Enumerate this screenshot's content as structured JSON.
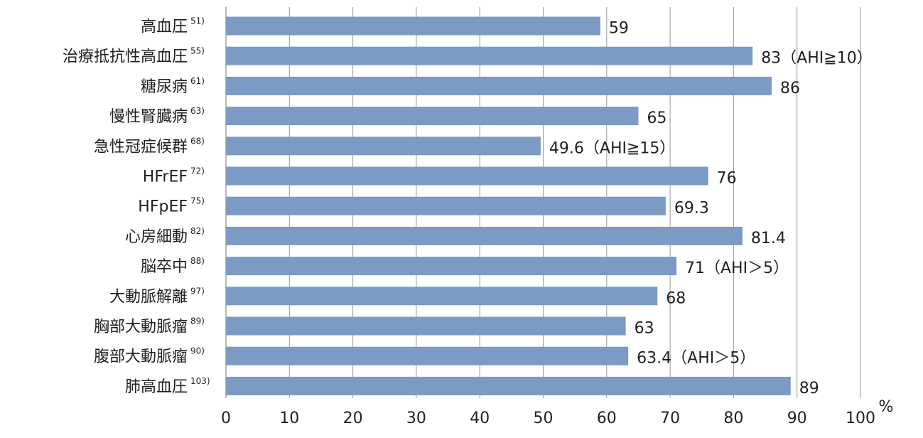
{
  "chart_data": {
    "type": "bar",
    "orientation": "horizontal",
    "categories": [
      {
        "label": "高血圧",
        "ref": "51)"
      },
      {
        "label": "治療抵抗性高血圧",
        "ref": "55)"
      },
      {
        "label": "糖尿病",
        "ref": "61)"
      },
      {
        "label": "慢性腎臓病",
        "ref": "63)"
      },
      {
        "label": "急性冠症候群",
        "ref": "68)"
      },
      {
        "label": "HFrEF",
        "ref": "72)"
      },
      {
        "label": "HFpEF",
        "ref": "75)"
      },
      {
        "label": "心房細動",
        "ref": "82)"
      },
      {
        "label": "脳卒中",
        "ref": "88)"
      },
      {
        "label": "大動脈解離",
        "ref": "97)"
      },
      {
        "label": "胸部大動脈瘤",
        "ref": "89)"
      },
      {
        "label": "腹部大動脈瘤",
        "ref": "90)"
      },
      {
        "label": "肺高血圧",
        "ref": "103)"
      }
    ],
    "values": [
      59,
      83,
      86,
      65,
      49.6,
      76,
      69.3,
      81.4,
      71,
      68,
      63,
      63.4,
      89
    ],
    "data_labels": [
      "59",
      "83（AHI≧10）",
      "86",
      "65",
      "49.6（AHI≧15）",
      "76",
      "69.3",
      "81.4",
      "71（AHI＞5）",
      "68",
      "63",
      "63.4（AHI＞5）",
      "89"
    ],
    "xticks": [
      "0",
      "10",
      "20",
      "30",
      "40",
      "50",
      "60",
      "70",
      "80",
      "90",
      "100"
    ],
    "xlim": [
      0,
      100
    ],
    "xunit": "%",
    "grid": true,
    "bar_color": "#7b9ac4",
    "grid_color": "#9a9a9a"
  }
}
